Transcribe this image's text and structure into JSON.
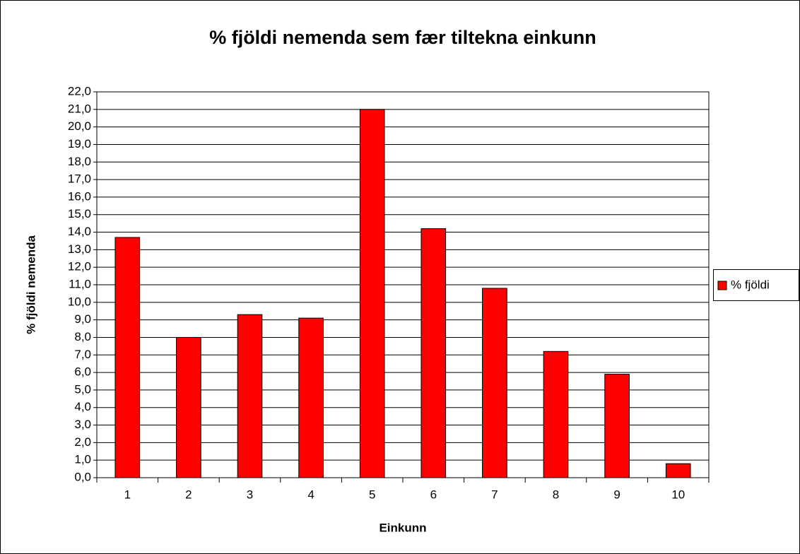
{
  "chart_data": {
    "type": "bar",
    "title": "% fjöldi nemenda sem fær tiltekna einkunn",
    "x_label": "Einkunn",
    "y_label": "% fjöldi nemenda",
    "categories": [
      "1",
      "2",
      "3",
      "4",
      "5",
      "6",
      "7",
      "8",
      "9",
      "10"
    ],
    "series": [
      {
        "name": "% fjöldi",
        "color": "#ff0000",
        "values": [
          13.7,
          8.0,
          9.3,
          9.1,
          21.0,
          14.2,
          10.8,
          7.2,
          5.9,
          0.8
        ]
      }
    ],
    "ylim": [
      0,
      22
    ],
    "yticks": [
      {
        "value": 0,
        "label": "0,0"
      },
      {
        "value": 1,
        "label": "1,0"
      },
      {
        "value": 2,
        "label": "2,0"
      },
      {
        "value": 3,
        "label": "3,0"
      },
      {
        "value": 4,
        "label": "4,0"
      },
      {
        "value": 5,
        "label": "5,0"
      },
      {
        "value": 6,
        "label": "6,0"
      },
      {
        "value": 7,
        "label": "7,0"
      },
      {
        "value": 8,
        "label": "8,0"
      },
      {
        "value": 9,
        "label": "9,0"
      },
      {
        "value": 10,
        "label": "10,0"
      },
      {
        "value": 11,
        "label": "11,0"
      },
      {
        "value": 12,
        "label": "12,0"
      },
      {
        "value": 13,
        "label": "13,0"
      },
      {
        "value": 14,
        "label": "14,0"
      },
      {
        "value": 15,
        "label": "15,0"
      },
      {
        "value": 16,
        "label": "16,0"
      },
      {
        "value": 17,
        "label": "17,0"
      },
      {
        "value": 18,
        "label": "18,0"
      },
      {
        "value": 19,
        "label": "19,0"
      },
      {
        "value": 20,
        "label": "20,0"
      },
      {
        "value": 21,
        "label": "21,0"
      },
      {
        "value": 22,
        "label": "22,0"
      }
    ],
    "grid": true,
    "legend": "right"
  }
}
